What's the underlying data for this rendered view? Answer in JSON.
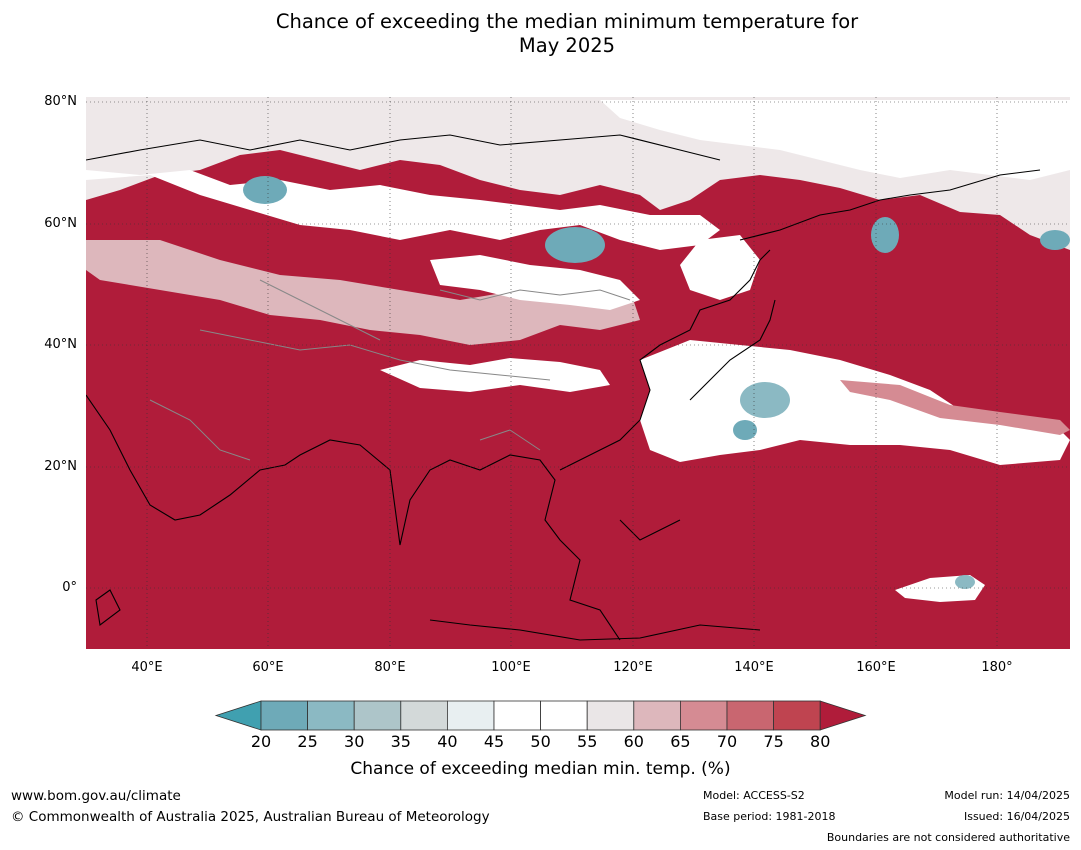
{
  "title": {
    "line1": "Chance of exceeding the median minimum temperature for",
    "line2": "May 2025"
  },
  "map": {
    "lat_labels": [
      "80°N",
      "60°N",
      "40°N",
      "20°N",
      "0°"
    ],
    "lon_labels": [
      "40°E",
      "60°E",
      "80°E",
      "100°E",
      "120°E",
      "140°E",
      "160°E",
      "180°"
    ],
    "dominant_color": "#b01c3a"
  },
  "colorbar": {
    "ticks": [
      "20",
      "25",
      "30",
      "35",
      "40",
      "45",
      "50",
      "55",
      "60",
      "65",
      "70",
      "75",
      "80"
    ],
    "colors": [
      "#40a0b0",
      "#6eaab8",
      "#8bb9c3",
      "#adc5c9",
      "#d3d9d9",
      "#e8eff1",
      "#ffffff",
      "#ffffff",
      "#eae6e7",
      "#ddb7bc",
      "#d58b93",
      "#c96670",
      "#bf4450",
      "#b01c3a"
    ],
    "label": "Chance of exceeding median min. temp. (%)"
  },
  "footer": {
    "url": "www.bom.gov.au/climate",
    "copyright": "© Commonwealth of Australia 2025, Australian Bureau of Meteorology",
    "model": "Model: ACCESS-S2",
    "base_period": "Base period: 1981-2018",
    "model_run": "Model run: 14/04/2025",
    "issued": "Issued: 16/04/2025",
    "disclaimer": "Boundaries are not considered authoritative"
  }
}
